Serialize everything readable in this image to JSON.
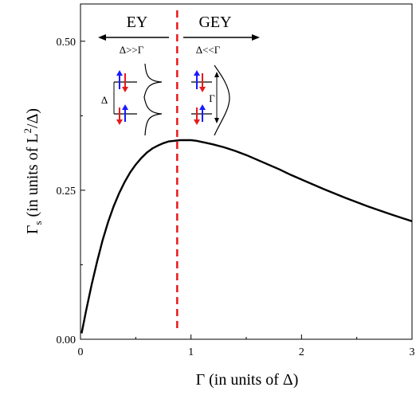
{
  "chart_data": {
    "type": "line",
    "title": "",
    "xlabel": "Γ (in units of Δ)",
    "ylabel_main": "Γ",
    "ylabel_sub": "s",
    "ylabel_rest": " (in units of L",
    "ylabel_sup": "2",
    "ylabel_end": "/Δ)",
    "xlim": [
      0,
      3
    ],
    "ylim": [
      0,
      0.5625
    ],
    "x_ticks": [
      0,
      1,
      2,
      3
    ],
    "x_tick_labels": [
      "0",
      "1",
      "2",
      "3"
    ],
    "y_ticks": [
      0,
      0.25,
      0.5
    ],
    "y_tick_labels": [
      "0.00",
      "0.25",
      "0.50"
    ],
    "grid": false,
    "series": [
      {
        "x": [
          0.01,
          0.05,
          0.1,
          0.15,
          0.2,
          0.25,
          0.3,
          0.35,
          0.4,
          0.45,
          0.5,
          0.55,
          0.6,
          0.65,
          0.7,
          0.75,
          0.8,
          0.85,
          0.9,
          0.95,
          1.0,
          1.05,
          1.1,
          1.2,
          1.3,
          1.4,
          1.5,
          1.6,
          1.7,
          1.8,
          1.9,
          2.0,
          2.2,
          2.4,
          2.6,
          2.8,
          3.0
        ],
        "y": [
          0.01,
          0.047,
          0.091,
          0.13,
          0.166,
          0.197,
          0.223,
          0.245,
          0.264,
          0.28,
          0.293,
          0.304,
          0.313,
          0.32,
          0.325,
          0.329,
          0.332,
          0.333,
          0.334,
          0.334,
          0.334,
          0.333,
          0.331,
          0.327,
          0.322,
          0.316,
          0.309,
          0.301,
          0.293,
          0.285,
          0.276,
          0.268,
          0.252,
          0.237,
          0.223,
          0.21,
          0.198
        ],
        "color": "#000000"
      }
    ],
    "divider": {
      "x": 0.875,
      "color": "#e8191c",
      "style": "dashed"
    },
    "regions": [
      {
        "label": "EY",
        "condition": "Δ>>Γ"
      },
      {
        "label": "GEY",
        "condition": "Δ<<Γ"
      }
    ],
    "inset_labels": {
      "gap": "Δ",
      "width": "Γ"
    },
    "spin_colors": {
      "up": "#1a1aff",
      "down": "#e8191c"
    }
  }
}
